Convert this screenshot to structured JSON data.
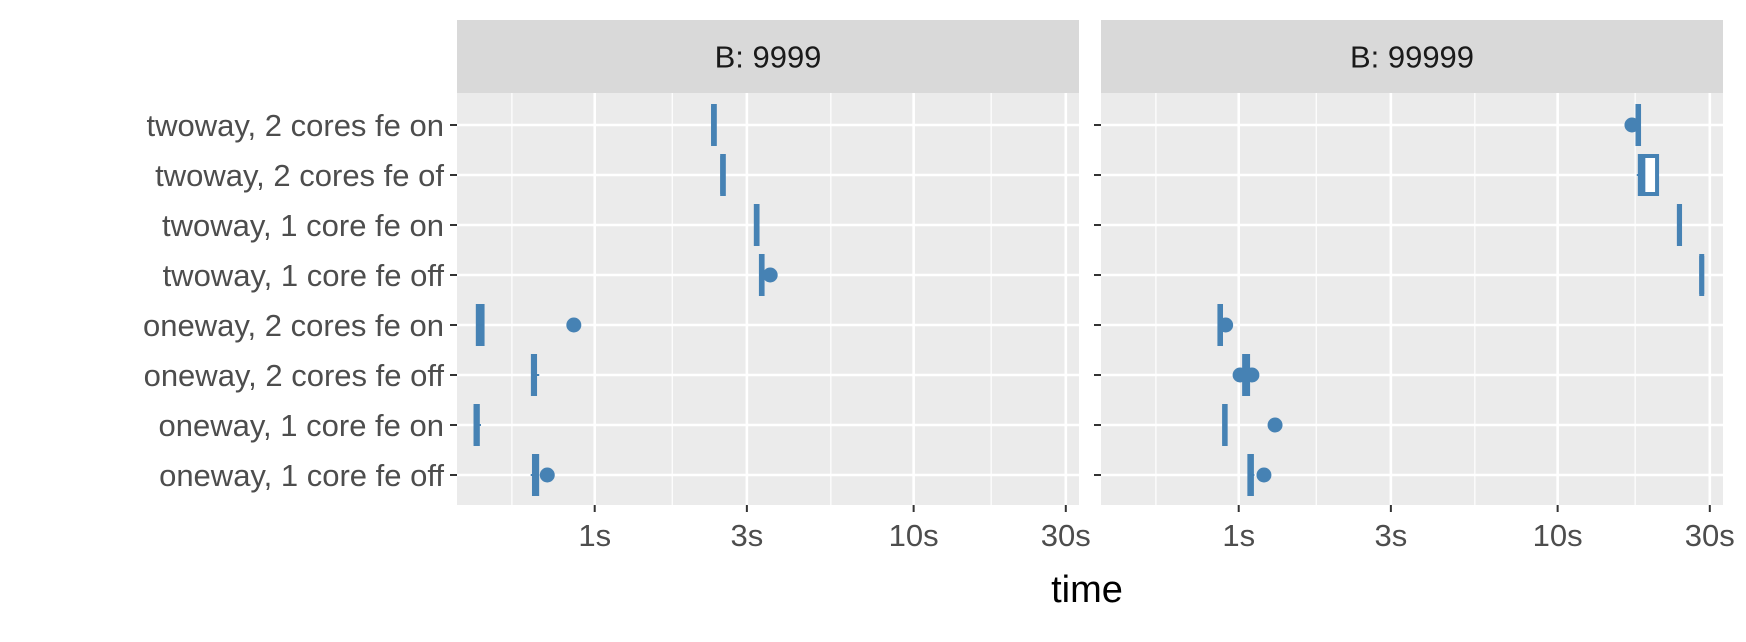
{
  "chart_data": {
    "type": "boxplot",
    "xlabel": "time",
    "ylabel": "",
    "x_scale": "log10",
    "x_unit": "seconds",
    "xlim": [
      0.37,
      33
    ],
    "x_ticks": [
      {
        "value": 1,
        "label": "1s"
      },
      {
        "value": 3,
        "label": "3s"
      },
      {
        "value": 10,
        "label": "10s"
      },
      {
        "value": 30,
        "label": "30s"
      }
    ],
    "x_minor_ticks": [
      0.55,
      1.75,
      5.5,
      17.5
    ],
    "categories": [
      "twoway, 2 cores fe on",
      "twoway, 2 cores fe of",
      "twoway, 1 core fe on",
      "twoway, 1 core fe off",
      "oneway, 2 cores fe on",
      "oneway, 2 cores fe off",
      "oneway, 1 core fe on",
      "oneway, 1 core fe off"
    ],
    "grid": true,
    "legend": "none",
    "color": "#4682b4",
    "panels": [
      {
        "title": "B: 9999",
        "boxes": [
          {
            "category": "twoway, 2 cores fe on",
            "min": 2.34,
            "q1": 2.35,
            "median": 2.36,
            "q3": 2.38,
            "max": 2.39,
            "outliers": []
          },
          {
            "category": "twoway, 2 cores fe of",
            "min": 2.5,
            "q1": 2.51,
            "median": 2.52,
            "q3": 2.54,
            "max": 2.55,
            "outliers": []
          },
          {
            "category": "twoway, 1 core fe on",
            "min": 3.19,
            "q1": 3.2,
            "median": 3.22,
            "q3": 3.24,
            "max": 3.25,
            "outliers": []
          },
          {
            "category": "twoway, 1 core fe off",
            "min": 3.3,
            "q1": 3.32,
            "median": 3.34,
            "q3": 3.36,
            "max": 3.38,
            "outliers": [
              3.55
            ]
          },
          {
            "category": "oneway, 2 cores fe on",
            "min": 0.425,
            "q1": 0.43,
            "median": 0.435,
            "q3": 0.445,
            "max": 0.45,
            "outliers": [
              0.86
            ]
          },
          {
            "category": "oneway, 2 cores fe off",
            "min": 0.635,
            "q1": 0.64,
            "median": 0.645,
            "q3": 0.65,
            "max": 0.67,
            "outliers": []
          },
          {
            "category": "oneway, 1 core fe on",
            "min": 0.42,
            "q1": 0.423,
            "median": 0.425,
            "q3": 0.43,
            "max": 0.44,
            "outliers": []
          },
          {
            "category": "oneway, 1 core fe off",
            "min": 0.63,
            "q1": 0.645,
            "median": 0.65,
            "q3": 0.66,
            "max": 0.67,
            "outliers": [
              0.71
            ]
          }
        ]
      },
      {
        "title": "B: 99999",
        "boxes": [
          {
            "category": "twoway, 2 cores fe on",
            "min": 17.6,
            "q1": 17.8,
            "median": 17.9,
            "q3": 18.0,
            "max": 18.1,
            "outliers": [
              17.1
            ]
          },
          {
            "category": "twoway, 2 cores fe of",
            "min": 17.7,
            "q1": 18.1,
            "median": 18.5,
            "q3": 20.5,
            "max": 20.6,
            "outliers": []
          },
          {
            "category": "twoway, 1 core fe on",
            "min": 23.9,
            "q1": 24.0,
            "median": 24.1,
            "q3": 24.2,
            "max": 24.3,
            "outliers": []
          },
          {
            "category": "twoway, 1 core fe off",
            "min": 28.1,
            "q1": 28.2,
            "median": 28.3,
            "q3": 28.4,
            "max": 28.5,
            "outliers": []
          },
          {
            "category": "oneway, 2 cores fe on",
            "min": 0.86,
            "q1": 0.87,
            "median": 0.875,
            "q3": 0.88,
            "max": 0.9,
            "outliers": [
              0.91
            ]
          },
          {
            "category": "oneway, 2 cores fe off",
            "min": 1.02,
            "q1": 1.04,
            "median": 1.05,
            "q3": 1.07,
            "max": 1.09,
            "outliers": [
              1.01,
              1.1
            ]
          },
          {
            "category": "oneway, 1 core fe on",
            "min": 0.89,
            "q1": 0.9,
            "median": 0.905,
            "q3": 0.91,
            "max": 0.92,
            "outliers": [
              1.3
            ]
          },
          {
            "category": "oneway, 1 core fe off",
            "min": 1.07,
            "q1": 1.08,
            "median": 1.09,
            "q3": 1.1,
            "max": 1.12,
            "outliers": [
              1.2
            ]
          }
        ]
      }
    ]
  }
}
